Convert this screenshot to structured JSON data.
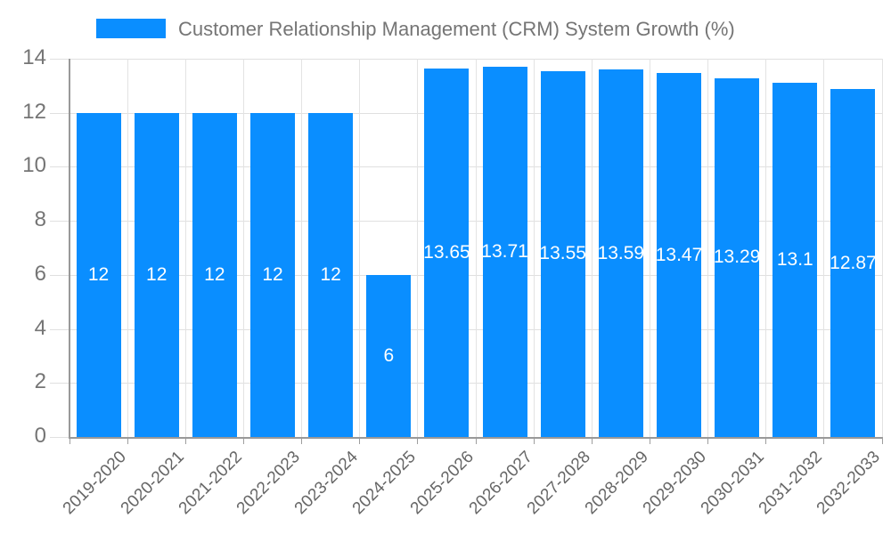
{
  "legend": {
    "label": "Customer Relationship Management (CRM) System Growth (%)"
  },
  "chart_data": {
    "type": "bar",
    "title": "Customer Relationship Management (CRM) System Growth (%)",
    "categories": [
      "2019-2020",
      "2020-2021",
      "2021-2022",
      "2022-2023",
      "2023-2024",
      "2024-2025",
      "2025-2026",
      "2026-2027",
      "2027-2028",
      "2028-2029",
      "2029-2030",
      "2030-2031",
      "2031-2032",
      "2032-2033"
    ],
    "values": [
      12,
      12,
      12,
      12,
      12,
      6,
      13.65,
      13.71,
      13.55,
      13.59,
      13.47,
      13.29,
      13.1,
      12.87
    ],
    "value_labels": [
      "12",
      "12",
      "12",
      "12",
      "12",
      "6",
      "13.65",
      "13.71",
      "13.55",
      "13.59",
      "13.47",
      "13.29",
      "13.1",
      "12.87"
    ],
    "xlabel": "",
    "ylabel": "",
    "ylim": [
      0,
      14
    ],
    "yticks": [
      0,
      2,
      4,
      6,
      8,
      10,
      12,
      14
    ],
    "ytick_labels": [
      "0",
      "2",
      "4",
      "6",
      "8",
      "10",
      "12",
      "14"
    ],
    "grid": true,
    "legend_position": "top"
  },
  "colors": {
    "bar": "#0a8eff",
    "value_label": "#ffffff",
    "y_axis_text": "#757575",
    "x_axis_text": "#666666",
    "legend_text": "#757575",
    "gridline": "#e0e0e0",
    "axis_line": "#999999",
    "background": "#ffffff"
  }
}
